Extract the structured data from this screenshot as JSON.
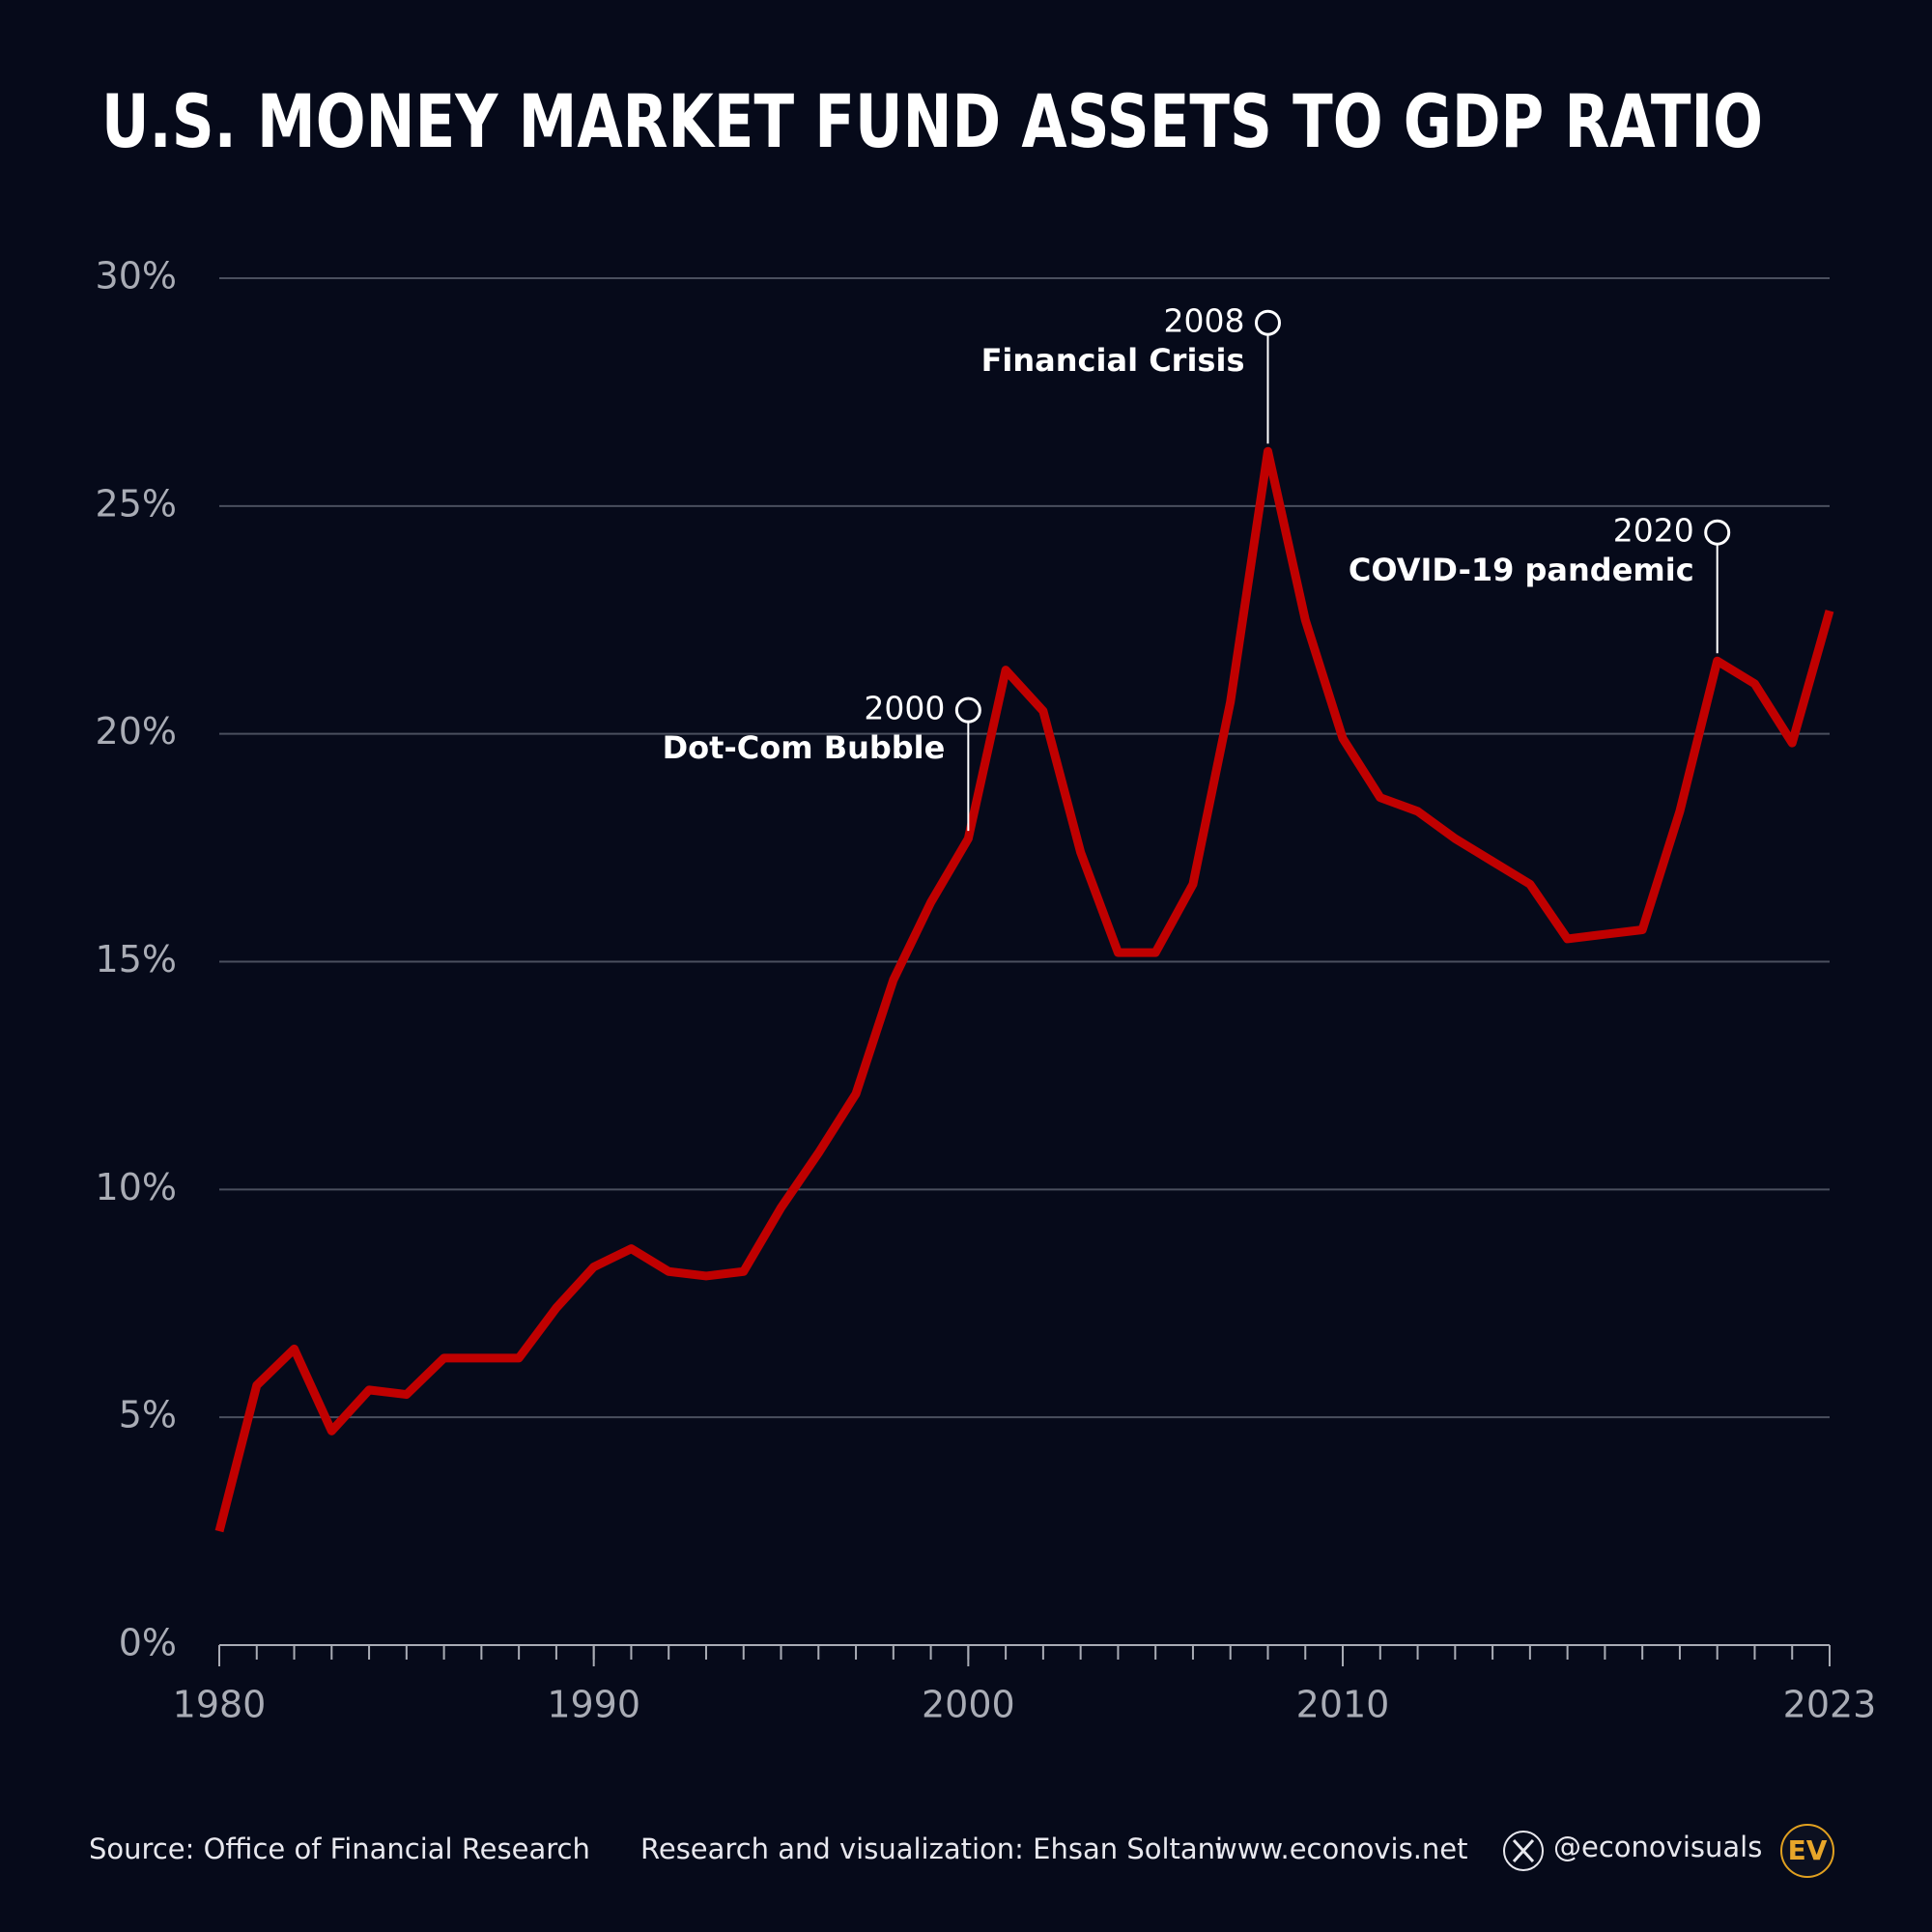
{
  "chart_data": {
    "type": "line",
    "title": "U.S. MONEY MARKET FUND ASSETS TO GDP RATIO",
    "x": [
      1980,
      1981,
      1982,
      1983,
      1984,
      1985,
      1986,
      1987,
      1988,
      1989,
      1990,
      1991,
      1992,
      1993,
      1994,
      1995,
      1996,
      1997,
      1998,
      1999,
      2000,
      2001,
      2002,
      2003,
      2004,
      2005,
      2006,
      2007,
      2008,
      2009,
      2010,
      2011,
      2012,
      2013,
      2014,
      2015,
      2016,
      2017,
      2018,
      2019,
      2020,
      2021,
      2022,
      2023
    ],
    "series": [
      {
        "name": "Money market fund assets to GDP",
        "color": "#c00000",
        "values": [
          2.5,
          5.7,
          6.5,
          4.7,
          5.6,
          5.5,
          6.3,
          6.3,
          6.3,
          7.4,
          8.3,
          8.7,
          8.2,
          8.1,
          8.2,
          9.6,
          10.8,
          12.1,
          14.6,
          16.3,
          17.7,
          21.4,
          20.5,
          17.4,
          15.2,
          15.2,
          16.7,
          20.7,
          26.2,
          22.5,
          19.9,
          18.6,
          18.3,
          17.7,
          17.2,
          16.7,
          15.5,
          15.6,
          15.7,
          18.3,
          21.6,
          21.1,
          19.8,
          22.7
        ]
      }
    ],
    "xlim": [
      1980,
      2023
    ],
    "xticks": [
      1980,
      1990,
      2000,
      2010,
      2023
    ],
    "ylim": [
      0,
      30
    ],
    "yticks": [
      {
        "value": 0,
        "label": "0%"
      },
      {
        "value": 5,
        "label": "5%"
      },
      {
        "value": 10,
        "label": "10%"
      },
      {
        "value": 15,
        "label": "15%"
      },
      {
        "value": 20,
        "label": "20%"
      },
      {
        "value": 25,
        "label": "25%"
      },
      {
        "value": 30,
        "label": "30%"
      }
    ],
    "grid": true,
    "annotations": [
      {
        "x": 2000,
        "label": "2000",
        "text": "Dot-Com Bubble"
      },
      {
        "x": 2008,
        "label": "2008",
        "text": "Financial Crisis"
      },
      {
        "x": 2020,
        "label": "2020",
        "text": "COVID-19 pandemic"
      }
    ],
    "source": "Source: Office of Financial Research",
    "credit": "Research and visualization: Ehsan Soltani",
    "website": "www.econovis.net",
    "handle": "@econovisuals",
    "logo": "EV"
  }
}
